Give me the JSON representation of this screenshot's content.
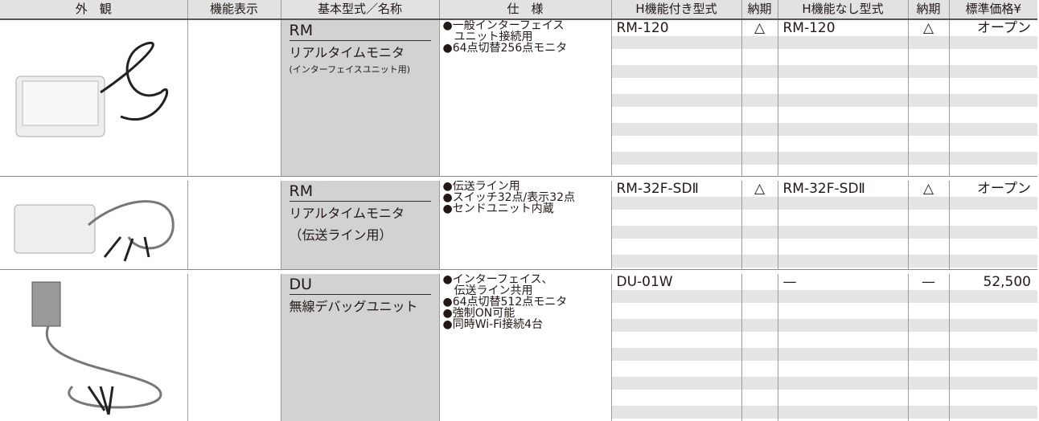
{
  "header": [
    "外　観",
    "機能表示",
    "基本型式／名称",
    "仕　様",
    "H機能付き型式",
    "納期",
    "H機能なし型式",
    "納期",
    "標準価格¥"
  ],
  "rows": [
    {
      "code": "RM",
      "name": "リアルタイムモニタ",
      "note": "(インターフェイスユニット用)",
      "spec": [
        "●一般インターフェイス",
        "　ユニット接続用",
        "●64点切替256点モニタ"
      ],
      "h_model": "RM-120",
      "h_lead": "△",
      "nh_model": "RM-120",
      "nh_lead": "△",
      "price": "オープン"
    },
    {
      "code": "RM",
      "name": "リアルタイムモニタ",
      "name2": "（伝送ライン用）",
      "spec": [
        "●伝送ライン用",
        "●スイッチ32点/表示32点",
        "●センドユニット内蔵"
      ],
      "h_model": "RM-32F-SDⅡ",
      "h_lead": "△",
      "nh_model": "RM-32F-SDⅡ",
      "nh_lead": "△",
      "price": "オープン"
    },
    {
      "code": "DU",
      "name": "無線デバッグユニット",
      "spec": [
        "●インターフェイス、",
        "　伝送ライン共用",
        "●64点切替512点モニタ",
        "●強制ON可能",
        "●同時Wi-Fi接続4台"
      ],
      "h_model": "DU-01W",
      "nh_model": "—",
      "nh_lead": "—",
      "price": "52,500"
    }
  ]
}
